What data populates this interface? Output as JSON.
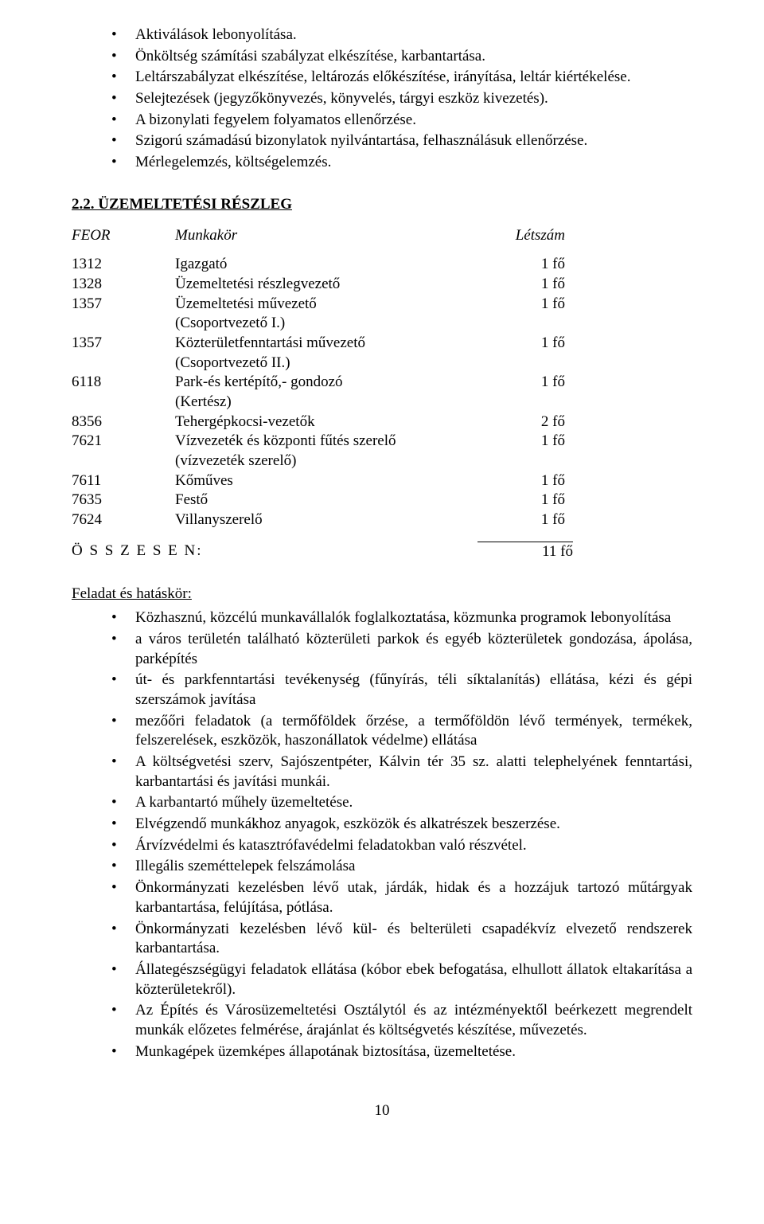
{
  "top_bullets": [
    "Aktiválások lebonyolítása.",
    "Önköltség számítási szabályzat elkészítése, karbantartása.",
    "Leltárszabályzat elkészítése, leltározás előkészítése, irányítása, leltár kiértékelése.",
    "Selejtezések (jegyzőkönyvezés, könyvelés, tárgyi eszköz kivezetés).",
    "A bizonylati fegyelem folyamatos ellenőrzése.",
    "Szigorú számadású bizonylatok nyilvántartása, felhasználásuk ellenőrzése.",
    "Mérlegelemzés, költségelemzés."
  ],
  "section_title": "2.2. ÜZEMELTETÉSI RÉSZLEG",
  "table_head": {
    "feor": "FEOR",
    "job": "Munkakör",
    "count": "Létszám"
  },
  "rows": [
    {
      "feor": "1312",
      "job": "Igazgató",
      "count": "1 fő"
    },
    {
      "feor": "1328",
      "job": "Üzemeltetési részlegvezető",
      "count": "1 fő"
    },
    {
      "feor": "1357",
      "job": "Üzemeltetési művezető\n(Csoportvezető I.)",
      "count": "1 fő"
    },
    {
      "feor": "1357",
      "job": "Közterületfenntartási művezető\n(Csoportvezető II.)",
      "count": "1 fő"
    },
    {
      "feor": "6118",
      "job": "Park-és kertépítő,- gondozó\n(Kertész)",
      "count": "1 fő"
    },
    {
      "feor": "8356",
      "job": "Tehergépkocsi-vezetők",
      "count": "2 fő"
    },
    {
      "feor": "7621",
      "job": "Vízvezeték és központi fűtés szerelő\n(vízvezeték szerelő)",
      "count": "1 fő"
    },
    {
      "feor": "7611",
      "job": "Kőműves",
      "count": "1 fő"
    },
    {
      "feor": "7635",
      "job": "Festő",
      "count": "1 fő"
    },
    {
      "feor": "7624",
      "job": "Villanyszerelő",
      "count": "1 fő"
    }
  ],
  "total_label": "Ö S S Z E S E N:",
  "total_value": "11  fő",
  "subhead": "Feladat és hatáskör:",
  "tasks": [
    "Közhasznú, közcélú munkavállalók foglalkoztatása, közmunka programok lebonyolítása",
    "a város területén található közterületi parkok és egyéb közterületek gondozása, ápolása, parképítés",
    "út- és parkfenntartási tevékenység (fűnyírás, téli síktalanítás) ellátása, kézi és gépi szerszámok javítása",
    "mezőőri feladatok (a termőföldek őrzése, a termőföldön lévő termények, termékek, felszerelések, eszközök, haszonállatok védelme) ellátása",
    "A költségvetési szerv, Sajószentpéter, Kálvin tér 35 sz. alatti telephelyének fenntartási, karbantartási és javítási munkái.",
    "A karbantartó műhely üzemeltetése.",
    "Elvégzendő munkákhoz anyagok, eszközök és alkatrészek beszerzése.",
    "Árvízvédelmi és katasztrófavédelmi feladatokban való részvétel.",
    "Illegális szeméttelepek felszámolása",
    "Önkormányzati kezelésben lévő utak, járdák, hidak és a hozzájuk tartozó műtárgyak karbantartása, felújítása, pótlása.",
    "Önkormányzati kezelésben lévő kül- és belterületi csapadékvíz elvezető rendszerek karbantartása.",
    "Állategészségügyi feladatok ellátása (kóbor ebek befogatása, elhullott állatok eltakarítása a közterületekről).",
    "Az Építés és Városüzemeltetési Osztálytól és az intézményektől beérkezett megrendelt munkák előzetes felmérése, árajánlat és költségvetés készítése, művezetés.",
    "Munkagépek üzemképes állapotának biztosítása, üzemeltetése."
  ],
  "page_number": "10"
}
